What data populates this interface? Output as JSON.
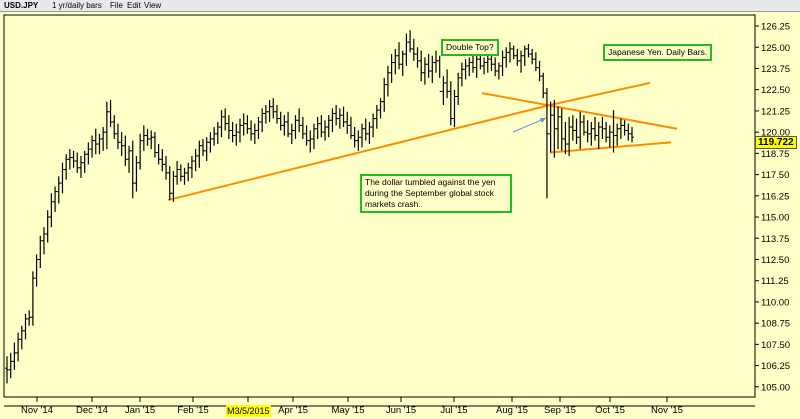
{
  "menu": {
    "indicator": "USD.JPY",
    "period": "1 yr/daily bars",
    "file": "File",
    "edit": "Edit",
    "view": "View"
  },
  "annotations": {
    "double_top": "Double Top?",
    "japanese_yen": "Japanese Yen. Daily Bars.",
    "dollar_tumbled": "The dollar tumbled against the yen during the September global stock markets crash."
  },
  "current_price": "119.722",
  "date_marker": "M3/5/2015",
  "colors": {
    "background": "#ffffc8",
    "bars": "#000000",
    "trendlines": "#ff8c00",
    "annotation_border": "#22bb22",
    "arrow": "#6a8fd8",
    "price_tag": "#ffff00"
  },
  "chart_data": {
    "type": "ohlc",
    "title": "",
    "xlabel": "",
    "ylabel": "",
    "x_tick_labels": [
      "Nov '14",
      "Dec '14",
      "Jan '15",
      "Feb '15",
      "Mar '15",
      "Apr '15",
      "May '15",
      "Jun '15",
      "Jul '15",
      "Aug '15",
      "Sep '15",
      "Oct '15",
      "Nov '15"
    ],
    "y_tick_labels": [
      "126.25",
      "125.00",
      "123.75",
      "122.50",
      "121.25",
      "120.00",
      "118.75",
      "117.50",
      "116.25",
      "115.00",
      "113.75",
      "112.50",
      "111.25",
      "110.00",
      "108.75",
      "107.50",
      "106.25",
      "105.00"
    ],
    "ylim": [
      104.4,
      126.9
    ],
    "grid": false,
    "scale": "linear",
    "series": [
      {
        "values": [
          [
            106.1,
            105.2,
            106.8,
            106.0
          ],
          [
            106.0,
            105.5,
            107.0,
            106.5
          ],
          [
            106.5,
            106.0,
            107.6,
            107.0
          ],
          [
            107.0,
            106.5,
            108.2,
            107.8
          ],
          [
            107.8,
            107.2,
            108.6,
            108.3
          ],
          [
            108.3,
            107.8,
            109.3,
            109.0
          ],
          [
            109.0,
            108.6,
            109.5,
            109.1
          ],
          [
            109.1,
            108.6,
            111.8,
            111.4
          ],
          [
            111.4,
            110.9,
            112.8,
            112.5
          ],
          [
            112.5,
            112.0,
            113.9,
            113.6
          ],
          [
            113.6,
            112.8,
            114.4,
            114.0
          ],
          [
            114.0,
            113.5,
            115.4,
            115.0
          ],
          [
            115.0,
            114.4,
            116.4,
            115.9
          ],
          [
            115.9,
            115.3,
            116.8,
            116.5
          ],
          [
            116.5,
            115.8,
            117.4,
            117.0
          ],
          [
            117.0,
            116.4,
            118.2,
            117.8
          ],
          [
            117.8,
            117.2,
            118.7,
            118.4
          ],
          [
            118.4,
            117.8,
            119.0,
            118.5
          ],
          [
            118.5,
            117.9,
            118.9,
            118.3
          ],
          [
            118.3,
            117.6,
            118.8,
            117.9
          ],
          [
            117.9,
            117.3,
            118.6,
            118.2
          ],
          [
            118.2,
            117.6,
            118.9,
            118.7
          ],
          [
            118.7,
            118.1,
            119.4,
            119.0
          ],
          [
            119.0,
            118.5,
            119.8,
            119.5
          ],
          [
            119.5,
            118.7,
            120.2,
            119.3
          ],
          [
            119.3,
            118.7,
            119.9,
            119.6
          ],
          [
            119.6,
            118.9,
            120.3,
            120.0
          ],
          [
            120.0,
            119.0,
            121.8,
            121.2
          ],
          [
            121.2,
            120.3,
            121.9,
            120.6
          ],
          [
            120.6,
            119.6,
            121.0,
            119.9
          ],
          [
            119.9,
            119.0,
            120.5,
            119.4
          ],
          [
            119.4,
            118.6,
            120.0,
            119.2
          ],
          [
            119.2,
            118.0,
            119.8,
            118.4
          ],
          [
            118.4,
            117.6,
            119.2,
            118.9
          ],
          [
            118.9,
            116.1,
            119.5,
            117.0
          ],
          [
            117.0,
            116.5,
            118.6,
            118.2
          ],
          [
            118.2,
            117.8,
            119.9,
            119.5
          ],
          [
            119.5,
            118.9,
            120.4,
            119.8
          ],
          [
            119.8,
            119.2,
            120.2,
            119.6
          ],
          [
            119.6,
            119.0,
            120.1,
            119.7
          ],
          [
            119.7,
            118.5,
            120.0,
            118.8
          ],
          [
            118.8,
            118.1,
            119.3,
            118.4
          ],
          [
            118.4,
            117.7,
            119.0,
            118.1
          ],
          [
            118.1,
            117.2,
            118.6,
            117.6
          ],
          [
            117.6,
            116.0,
            118.0,
            116.4
          ],
          [
            116.4,
            115.9,
            117.7,
            117.4
          ],
          [
            117.4,
            116.9,
            118.3,
            117.8
          ],
          [
            117.8,
            117.1,
            118.1,
            117.4
          ],
          [
            117.4,
            116.9,
            117.9,
            117.6
          ],
          [
            117.6,
            117.1,
            118.2,
            117.9
          ],
          [
            117.9,
            117.3,
            118.6,
            118.3
          ],
          [
            118.3,
            117.7,
            119.0,
            118.6
          ],
          [
            118.6,
            117.9,
            119.5,
            119.2
          ],
          [
            119.2,
            118.6,
            119.6,
            118.9
          ],
          [
            118.9,
            118.3,
            119.7,
            119.4
          ],
          [
            119.4,
            118.8,
            120.0,
            119.6
          ],
          [
            119.6,
            119.2,
            120.3,
            119.9
          ],
          [
            119.9,
            119.3,
            120.6,
            120.3
          ],
          [
            120.3,
            119.7,
            121.3,
            120.9
          ],
          [
            120.9,
            120.1,
            121.4,
            120.5
          ],
          [
            120.5,
            119.6,
            121.0,
            120.1
          ],
          [
            120.1,
            119.4,
            120.6,
            119.8
          ],
          [
            119.8,
            119.2,
            120.5,
            120.0
          ],
          [
            120.0,
            119.4,
            120.8,
            120.4
          ],
          [
            120.4,
            119.8,
            121.1,
            120.5
          ],
          [
            120.5,
            119.9,
            121.0,
            120.2
          ],
          [
            120.2,
            119.5,
            120.7,
            119.9
          ],
          [
            119.9,
            119.3,
            120.5,
            120.1
          ],
          [
            120.1,
            119.6,
            120.9,
            120.6
          ],
          [
            120.6,
            120.0,
            121.4,
            121.1
          ],
          [
            121.1,
            120.5,
            121.6,
            121.2
          ],
          [
            121.2,
            120.6,
            121.9,
            121.5
          ],
          [
            121.5,
            120.8,
            122.0,
            121.2
          ],
          [
            121.2,
            120.5,
            121.6,
            120.8
          ],
          [
            120.8,
            120.1,
            121.2,
            120.4
          ],
          [
            120.4,
            119.8,
            121.0,
            120.6
          ],
          [
            120.6,
            119.7,
            121.2,
            119.9
          ],
          [
            119.9,
            119.3,
            120.5,
            120.1
          ],
          [
            120.1,
            119.6,
            121.0,
            120.7
          ],
          [
            120.7,
            120.0,
            121.4,
            120.4
          ],
          [
            120.4,
            119.6,
            120.9,
            119.9
          ],
          [
            119.9,
            119.2,
            120.4,
            119.5
          ],
          [
            119.5,
            118.8,
            120.1,
            119.6
          ],
          [
            119.6,
            119.0,
            120.5,
            120.2
          ],
          [
            120.2,
            119.6,
            120.9,
            120.5
          ],
          [
            120.5,
            119.7,
            121.0,
            120.0
          ],
          [
            120.0,
            119.5,
            120.7,
            120.3
          ],
          [
            120.3,
            119.7,
            121.0,
            120.7
          ],
          [
            120.7,
            120.0,
            121.4,
            121.1
          ],
          [
            121.1,
            120.4,
            121.6,
            120.8
          ],
          [
            120.8,
            120.2,
            121.4,
            121.0
          ],
          [
            121.0,
            120.3,
            121.5,
            120.6
          ],
          [
            120.6,
            119.9,
            121.2,
            120.4
          ],
          [
            120.4,
            119.6,
            120.9,
            119.8
          ],
          [
            119.8,
            119.1,
            120.3,
            119.5
          ],
          [
            119.5,
            118.9,
            120.1,
            119.7
          ],
          [
            119.7,
            119.1,
            120.5,
            120.2
          ],
          [
            120.2,
            119.5,
            120.8,
            119.9
          ],
          [
            119.9,
            119.3,
            120.6,
            120.3
          ],
          [
            120.3,
            119.7,
            121.1,
            120.8
          ],
          [
            120.8,
            120.2,
            121.6,
            121.3
          ],
          [
            121.3,
            120.8,
            122.0,
            121.8
          ],
          [
            121.8,
            121.2,
            123.2,
            122.8
          ],
          [
            122.8,
            122.1,
            123.9,
            123.5
          ],
          [
            123.5,
            122.9,
            124.6,
            124.1
          ],
          [
            124.1,
            123.4,
            124.9,
            124.5
          ],
          [
            124.5,
            123.7,
            125.3,
            124.0
          ],
          [
            124.0,
            123.3,
            124.8,
            124.6
          ],
          [
            124.6,
            123.9,
            125.8,
            125.3
          ],
          [
            125.3,
            124.7,
            126.0,
            124.9
          ],
          [
            124.9,
            124.2,
            125.5,
            124.6
          ],
          [
            124.6,
            123.8,
            125.0,
            124.2
          ],
          [
            124.2,
            123.0,
            124.8,
            123.5
          ],
          [
            123.5,
            122.8,
            124.4,
            124.0
          ],
          [
            124.0,
            123.2,
            124.6,
            123.6
          ],
          [
            123.6,
            122.9,
            124.5,
            124.1
          ],
          [
            124.1,
            123.5,
            124.8,
            124.2
          ],
          [
            124.2,
            123.2,
            124.5,
            122.4
          ],
          [
            122.4,
            121.6,
            123.3,
            122.9
          ],
          [
            122.9,
            122.0,
            123.7,
            122.4
          ],
          [
            122.4,
            120.4,
            123.0,
            120.8
          ],
          [
            120.8,
            120.3,
            122.5,
            122.1
          ],
          [
            122.1,
            121.6,
            123.5,
            123.2
          ],
          [
            123.2,
            122.7,
            124.1,
            123.7
          ],
          [
            123.7,
            123.1,
            124.3,
            123.9
          ],
          [
            123.9,
            123.3,
            124.4,
            124.1
          ],
          [
            124.1,
            123.5,
            124.6,
            123.8
          ],
          [
            123.8,
            123.2,
            124.6,
            124.3
          ],
          [
            124.3,
            123.7,
            124.5,
            123.9
          ],
          [
            123.9,
            123.4,
            124.4,
            124.1
          ],
          [
            124.1,
            123.5,
            124.7,
            124.3
          ],
          [
            124.3,
            123.6,
            124.7,
            124.0
          ],
          [
            124.0,
            123.3,
            124.4,
            123.6
          ],
          [
            123.6,
            123.1,
            124.1,
            123.9
          ],
          [
            123.9,
            123.3,
            124.8,
            124.4
          ],
          [
            124.4,
            123.8,
            125.0,
            124.7
          ],
          [
            124.7,
            124.1,
            125.3,
            124.9
          ],
          [
            124.9,
            124.3,
            125.1,
            124.5
          ],
          [
            124.5,
            123.9,
            124.9,
            124.2
          ],
          [
            124.2,
            123.5,
            124.8,
            124.5
          ],
          [
            124.5,
            123.9,
            125.1,
            124.9
          ],
          [
            124.9,
            124.4,
            125.2,
            124.6
          ],
          [
            124.6,
            124.0,
            124.9,
            124.3
          ],
          [
            124.3,
            123.6,
            124.7,
            123.8
          ],
          [
            123.8,
            123.0,
            124.2,
            123.3
          ],
          [
            123.3,
            122.0,
            123.5,
            122.3
          ],
          [
            122.3,
            116.1,
            122.6,
            119.9
          ],
          [
            119.9,
            118.8,
            121.8,
            121.0
          ],
          [
            121.0,
            118.5,
            121.9,
            120.2
          ],
          [
            120.2,
            119.0,
            121.5,
            120.9
          ],
          [
            120.9,
            118.9,
            121.4,
            119.6
          ],
          [
            119.6,
            118.7,
            120.6,
            119.3
          ],
          [
            119.3,
            118.6,
            120.9,
            120.3
          ],
          [
            120.3,
            119.5,
            121.0,
            120.1
          ],
          [
            120.1,
            119.3,
            120.8,
            119.7
          ],
          [
            119.7,
            119.0,
            121.2,
            120.6
          ],
          [
            120.6,
            119.8,
            121.0,
            120.0
          ],
          [
            120.0,
            119.4,
            120.7,
            119.9
          ],
          [
            119.9,
            119.2,
            120.6,
            120.2
          ],
          [
            120.2,
            119.5,
            120.9,
            119.8
          ],
          [
            119.8,
            119.0,
            120.6,
            120.3
          ],
          [
            120.3,
            119.6,
            120.9,
            120.2
          ],
          [
            120.2,
            119.4,
            120.6,
            119.7
          ],
          [
            119.7,
            119.1,
            120.4,
            120.0
          ],
          [
            120.0,
            118.8,
            121.3,
            119.8
          ],
          [
            119.8,
            119.2,
            120.5,
            120.2
          ],
          [
            120.2,
            119.6,
            120.8,
            120.4
          ],
          [
            120.4,
            119.8,
            120.7,
            120.1
          ],
          [
            120.1,
            119.5,
            120.5,
            119.9
          ],
          [
            119.9,
            119.4,
            120.3,
            119.7
          ]
        ]
      }
    ],
    "trendlines": [
      {
        "from": [
          "Feb '15",
          116.0
        ],
        "to": [
          "Sep '15",
          121.6
        ]
      },
      {
        "from": [
          "Sep '15",
          121.6
        ],
        "to": [
          "Nov '15",
          122.9
        ]
      },
      {
        "from": [
          "Aug '15",
          122.3
        ],
        "to": [
          "Nov '15",
          120.2
        ]
      },
      {
        "from": [
          "Sep '15",
          118.8
        ],
        "to": [
          "Nov '15",
          119.4
        ]
      }
    ]
  }
}
